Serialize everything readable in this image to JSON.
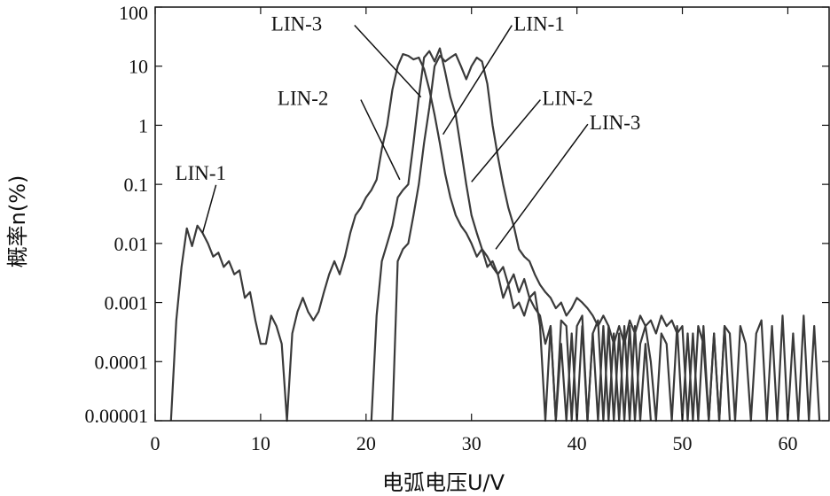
{
  "chart_data": {
    "type": "line",
    "xlabel": "电弧电压U/V",
    "ylabel": "概率n(%)",
    "xlim": [
      0,
      64
    ],
    "ylim": [
      1e-05,
      100
    ],
    "yscale": "log",
    "grid": false,
    "x_ticks": [
      0,
      10,
      20,
      30,
      40,
      50,
      60
    ],
    "y_ticks": [
      {
        "value": 100,
        "label": "100"
      },
      {
        "value": 10,
        "label": "10"
      },
      {
        "value": 1,
        "label": "1"
      },
      {
        "value": 0.1,
        "label": "0.1"
      },
      {
        "value": 0.01,
        "label": "0.01"
      },
      {
        "value": 0.001,
        "label": "0.001"
      },
      {
        "value": 0.0001,
        "label": "0.0001"
      },
      {
        "value": 1e-05,
        "label": "0.00001"
      }
    ],
    "series": [
      {
        "name": "LIN-1",
        "points": [
          [
            1.5,
            1e-05
          ],
          [
            2.0,
            0.0005
          ],
          [
            2.5,
            0.004
          ],
          [
            3.0,
            0.018
          ],
          [
            3.5,
            0.009
          ],
          [
            4.0,
            0.02
          ],
          [
            4.5,
            0.015
          ],
          [
            5.0,
            0.01
          ],
          [
            5.5,
            0.006
          ],
          [
            6.0,
            0.007
          ],
          [
            6.5,
            0.004
          ],
          [
            7.0,
            0.005
          ],
          [
            7.5,
            0.003
          ],
          [
            8.0,
            0.0035
          ],
          [
            8.5,
            0.0012
          ],
          [
            9.0,
            0.0015
          ],
          [
            9.5,
            0.0005
          ],
          [
            10.0,
            0.0002
          ],
          [
            10.5,
            0.0002
          ],
          [
            11.0,
            0.0006
          ],
          [
            11.5,
            0.0004
          ],
          [
            12.0,
            0.0002
          ],
          [
            12.5,
            1e-05
          ],
          [
            13.0,
            0.0003
          ],
          [
            13.5,
            0.0007
          ],
          [
            14.0,
            0.0012
          ],
          [
            14.5,
            0.0007
          ],
          [
            15.0,
            0.0005
          ],
          [
            15.5,
            0.0007
          ],
          [
            16.0,
            0.0015
          ],
          [
            16.5,
            0.003
          ],
          [
            17.0,
            0.005
          ],
          [
            17.5,
            0.003
          ],
          [
            18.0,
            0.006
          ],
          [
            18.5,
            0.015
          ],
          [
            19.0,
            0.03
          ],
          [
            19.5,
            0.04
          ],
          [
            20.0,
            0.06
          ],
          [
            20.5,
            0.08
          ],
          [
            21.0,
            0.12
          ],
          [
            21.5,
            0.4
          ],
          [
            22.0,
            1.0
          ],
          [
            22.5,
            4.0
          ],
          [
            23.0,
            10
          ],
          [
            23.5,
            16
          ],
          [
            24.0,
            15
          ],
          [
            24.5,
            13
          ],
          [
            25.0,
            14
          ],
          [
            25.5,
            9
          ],
          [
            26.0,
            4
          ],
          [
            26.5,
            1.5
          ],
          [
            27.0,
            0.5
          ],
          [
            27.5,
            0.15
          ],
          [
            28.0,
            0.06
          ],
          [
            28.5,
            0.03
          ],
          [
            29.0,
            0.02
          ],
          [
            29.5,
            0.015
          ],
          [
            30.0,
            0.01
          ],
          [
            30.5,
            0.006
          ],
          [
            31.0,
            0.008
          ],
          [
            31.5,
            0.004
          ],
          [
            32.0,
            0.005
          ],
          [
            32.5,
            0.003
          ],
          [
            33.0,
            0.004
          ],
          [
            33.5,
            0.002
          ],
          [
            34.0,
            0.003
          ],
          [
            34.5,
            0.0015
          ],
          [
            35.0,
            0.0025
          ],
          [
            35.5,
            0.0012
          ],
          [
            36.0,
            0.0015
          ],
          [
            36.5,
            0.0004
          ],
          [
            37.0,
            1e-05
          ],
          [
            37.5,
            0.0004
          ],
          [
            38.0,
            1e-05
          ],
          [
            38.5,
            0.0002
          ],
          [
            39.0,
            1e-05
          ],
          [
            39.5,
            0.0003
          ],
          [
            40.0,
            1e-05
          ],
          [
            40.5,
            0.0004
          ],
          [
            41.0,
            1e-05
          ],
          [
            41.5,
            0.0003
          ],
          [
            42.0,
            1e-05
          ],
          [
            42.5,
            0.0004
          ],
          [
            43.0,
            1e-05
          ],
          [
            43.5,
            0.0003
          ],
          [
            44.0,
            1e-05
          ],
          [
            44.5,
            0.0004
          ],
          [
            45.0,
            1e-05
          ],
          [
            45.5,
            0.0004
          ],
          [
            46.0,
            1e-05
          ],
          [
            46.5,
            0.0002
          ],
          [
            47.0,
            1e-05
          ]
        ]
      },
      {
        "name": "LIN-2",
        "points": [
          [
            20.5,
            1e-05
          ],
          [
            21.0,
            0.0006
          ],
          [
            21.5,
            0.005
          ],
          [
            22.0,
            0.01
          ],
          [
            22.5,
            0.02
          ],
          [
            23.0,
            0.06
          ],
          [
            23.5,
            0.08
          ],
          [
            24.0,
            0.1
          ],
          [
            24.5,
            0.5
          ],
          [
            25.0,
            3
          ],
          [
            25.5,
            14
          ],
          [
            26.0,
            18
          ],
          [
            26.5,
            12
          ],
          [
            27.0,
            20
          ],
          [
            27.5,
            8
          ],
          [
            28.0,
            3
          ],
          [
            28.5,
            1.5
          ],
          [
            29.0,
            0.4
          ],
          [
            29.5,
            0.1
          ],
          [
            30.0,
            0.03
          ],
          [
            30.5,
            0.015
          ],
          [
            31.0,
            0.008
          ],
          [
            31.5,
            0.006
          ],
          [
            32.0,
            0.004
          ],
          [
            32.5,
            0.003
          ],
          [
            33.0,
            0.0012
          ],
          [
            33.5,
            0.002
          ],
          [
            34.0,
            0.0008
          ],
          [
            34.5,
            0.001
          ],
          [
            35.0,
            0.0006
          ],
          [
            35.5,
            0.0012
          ],
          [
            36.0,
            0.0008
          ],
          [
            36.5,
            0.0006
          ],
          [
            37.0,
            0.0002
          ],
          [
            37.5,
            0.0004
          ],
          [
            38.0,
            1e-05
          ],
          [
            38.5,
            0.0005
          ],
          [
            39.0,
            0.0004
          ],
          [
            39.5,
            1e-05
          ],
          [
            40.0,
            0.0004
          ],
          [
            40.5,
            0.0006
          ],
          [
            41.0,
            1e-05
          ],
          [
            41.5,
            0.0003
          ],
          [
            42.0,
            0.0005
          ],
          [
            42.5,
            1e-05
          ],
          [
            43.0,
            0.0004
          ],
          [
            43.5,
            1e-05
          ],
          [
            44.0,
            0.0003
          ],
          [
            44.5,
            1e-05
          ],
          [
            45.0,
            0.0004
          ],
          [
            45.5,
            1e-05
          ],
          [
            46.0,
            0.0002
          ],
          [
            46.5,
            0.0004
          ],
          [
            47.0,
            0.0001
          ],
          [
            47.5,
            1e-05
          ],
          [
            48.0,
            0.0003
          ],
          [
            48.5,
            0.0002
          ],
          [
            49.0,
            1e-05
          ],
          [
            49.5,
            0.0004
          ],
          [
            50.0,
            1e-05
          ],
          [
            50.5,
            0.0003
          ],
          [
            51.0,
            1e-05
          ],
          [
            51.5,
            0.0004
          ],
          [
            52.0,
            0.0002
          ],
          [
            52.5,
            1e-05
          ],
          [
            53.0,
            0.0003
          ],
          [
            53.5,
            1e-05
          ],
          [
            54.0,
            0.0004
          ],
          [
            54.5,
            1e-05
          ]
        ]
      },
      {
        "name": "LIN-3",
        "points": [
          [
            22.5,
            1e-05
          ],
          [
            23.0,
            0.005
          ],
          [
            23.5,
            0.008
          ],
          [
            24.0,
            0.01
          ],
          [
            24.5,
            0.03
          ],
          [
            25.0,
            0.1
          ],
          [
            25.5,
            0.5
          ],
          [
            26.0,
            2
          ],
          [
            26.5,
            10
          ],
          [
            27.0,
            15
          ],
          [
            27.5,
            12
          ],
          [
            28.0,
            14
          ],
          [
            28.5,
            16
          ],
          [
            29.0,
            10
          ],
          [
            29.5,
            6
          ],
          [
            30.0,
            10
          ],
          [
            30.5,
            14
          ],
          [
            31.0,
            12
          ],
          [
            31.5,
            5
          ],
          [
            32.0,
            1
          ],
          [
            32.5,
            0.3
          ],
          [
            33.0,
            0.1
          ],
          [
            33.5,
            0.04
          ],
          [
            34.0,
            0.02
          ],
          [
            34.5,
            0.008
          ],
          [
            35.0,
            0.006
          ],
          [
            35.5,
            0.005
          ],
          [
            36.0,
            0.003
          ],
          [
            36.5,
            0.002
          ],
          [
            37.0,
            0.0015
          ],
          [
            37.5,
            0.0012
          ],
          [
            38.0,
            0.0008
          ],
          [
            38.5,
            0.001
          ],
          [
            39.0,
            0.0006
          ],
          [
            39.5,
            0.0008
          ],
          [
            40.0,
            0.0012
          ],
          [
            40.5,
            0.001
          ],
          [
            41.0,
            0.0008
          ],
          [
            41.5,
            0.0006
          ],
          [
            42.0,
            0.0004
          ],
          [
            42.5,
            0.0006
          ],
          [
            43.0,
            0.0004
          ],
          [
            43.5,
            0.0002
          ],
          [
            44.0,
            0.0004
          ],
          [
            44.5,
            0.0002
          ],
          [
            45.0,
            0.0005
          ],
          [
            45.5,
            0.0003
          ],
          [
            46.0,
            0.0006
          ],
          [
            46.5,
            0.0004
          ],
          [
            47.0,
            0.0005
          ],
          [
            47.5,
            0.0003
          ],
          [
            48.0,
            0.0006
          ],
          [
            48.5,
            0.0004
          ],
          [
            49.0,
            0.0005
          ],
          [
            49.5,
            0.0003
          ],
          [
            50.0,
            0.0004
          ],
          [
            50.5,
            1e-05
          ],
          [
            51.0,
            0.0003
          ],
          [
            51.5,
            1e-05
          ],
          [
            52.0,
            0.0004
          ],
          [
            52.5,
            1e-05
          ],
          [
            53.0,
            0.0003
          ],
          [
            53.5,
            1e-05
          ],
          [
            54.0,
            0.0004
          ],
          [
            54.5,
            0.0003
          ],
          [
            55.0,
            1e-05
          ],
          [
            55.5,
            0.0004
          ],
          [
            56.0,
            0.0002
          ],
          [
            56.5,
            1e-05
          ],
          [
            57.0,
            0.0003
          ],
          [
            57.5,
            0.0005
          ],
          [
            58.0,
            1e-05
          ],
          [
            58.5,
            0.0004
          ],
          [
            59.0,
            1e-05
          ],
          [
            59.5,
            0.0006
          ],
          [
            60.0,
            1e-05
          ],
          [
            60.5,
            0.0003
          ],
          [
            61.0,
            1e-05
          ],
          [
            61.5,
            0.0006
          ],
          [
            62.0,
            1e-05
          ],
          [
            62.5,
            0.0004
          ],
          [
            63.0,
            1e-05
          ]
        ]
      }
    ],
    "annotations": [
      {
        "label": "LIN-1",
        "text_x": 1.9,
        "text_y": 0.12,
        "target_x": 4.5,
        "target_y": 0.015
      },
      {
        "label": "LIN-2",
        "text_x": 11.6,
        "text_y": 2.2,
        "target_x": 23.2,
        "target_y": 0.12
      },
      {
        "label": "LIN-3",
        "text_x": 11.0,
        "text_y": 40,
        "target_x": 25.2,
        "target_y": 3.0
      },
      {
        "label": "LIN-1",
        "text_x": 34.0,
        "text_y": 40,
        "target_x": 27.3,
        "target_y": 0.7
      },
      {
        "label": "LIN-2",
        "text_x": 36.7,
        "text_y": 2.2,
        "target_x": 30.0,
        "target_y": 0.11
      },
      {
        "label": "LIN-3",
        "text_x": 41.2,
        "text_y": 0.85,
        "target_x": 32.3,
        "target_y": 0.008
      }
    ]
  }
}
